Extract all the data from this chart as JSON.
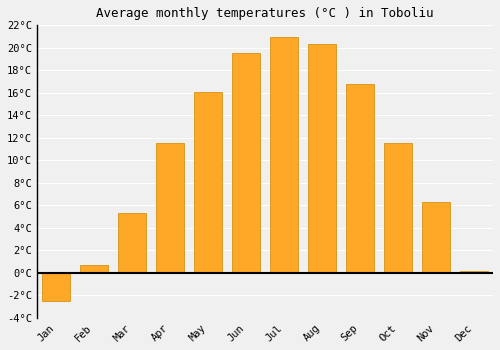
{
  "months": [
    "Jan",
    "Feb",
    "Mar",
    "Apr",
    "May",
    "Jun",
    "Jul",
    "Aug",
    "Sep",
    "Oct",
    "Nov",
    "Dec"
  ],
  "values": [
    -2.5,
    0.7,
    5.3,
    11.5,
    16.1,
    19.5,
    21.0,
    20.3,
    16.8,
    11.5,
    6.3,
    0.2
  ],
  "bar_color": "#FFA726",
  "bar_edge_color": "#CC8800",
  "title": "Average monthly temperatures (°C ) in Toboliu",
  "ylim": [
    -4,
    22
  ],
  "yticks": [
    -4,
    -2,
    0,
    2,
    4,
    6,
    8,
    10,
    12,
    14,
    16,
    18,
    20,
    22
  ],
  "background_color": "#f0f0f0",
  "plot_bg_color": "#f0f0f0",
  "grid_color": "#ffffff",
  "title_fontsize": 9,
  "tick_fontsize": 7.5,
  "bar_width": 0.75
}
